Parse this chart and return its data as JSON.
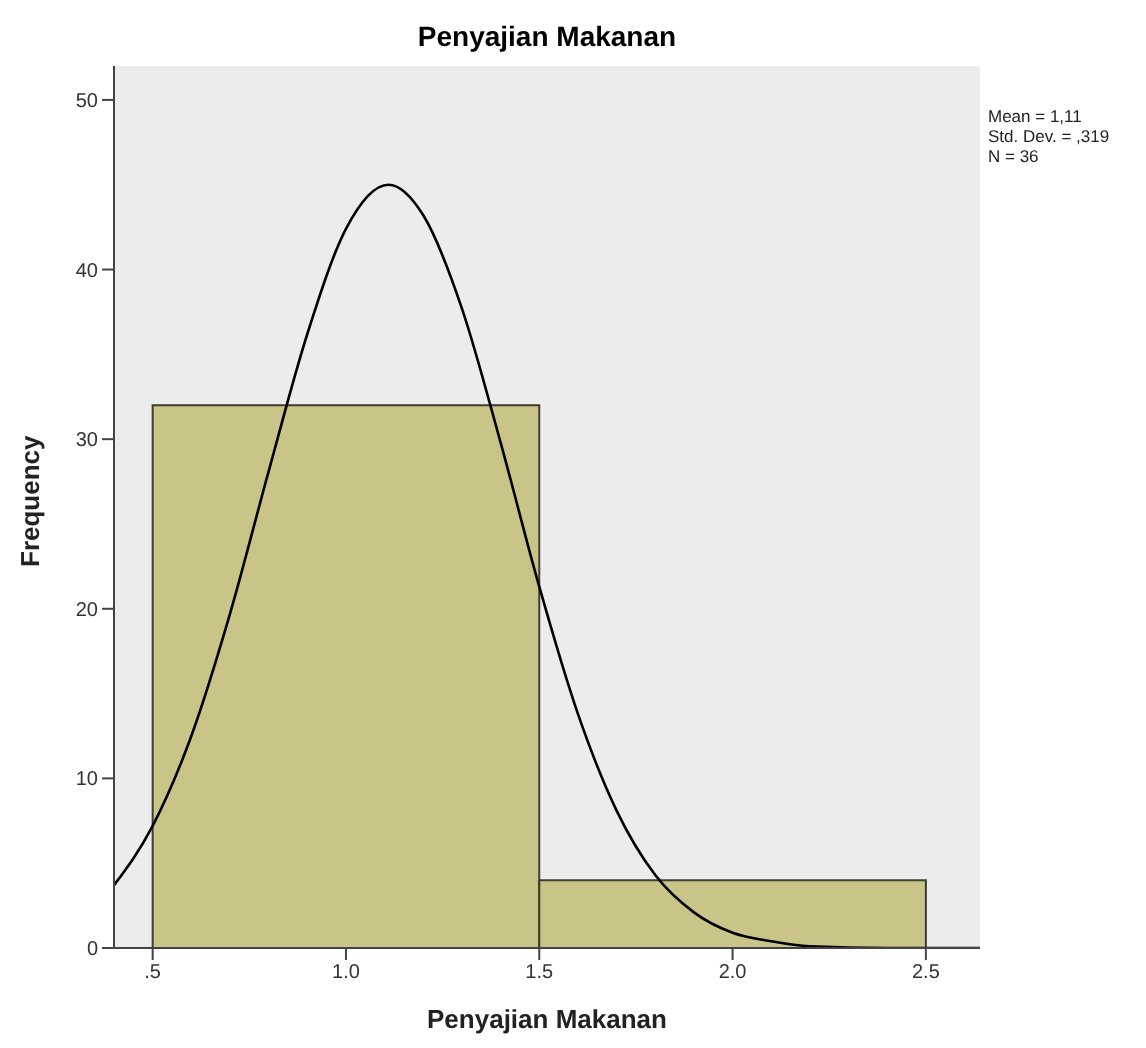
{
  "chart_data": {
    "type": "histogram",
    "title": "Penyajian Makanan",
    "xlabel": "Penyajian Makanan",
    "ylabel": "Frequency",
    "bins": [
      0.5,
      1.5,
      2.5
    ],
    "values": [
      32,
      4
    ],
    "color": "#c9c487",
    "series": [
      {
        "type": "line",
        "color": "#000000",
        "x": [
          0.4,
          0.5,
          0.6,
          0.7,
          0.8,
          0.9,
          1.0,
          1.11,
          1.2,
          1.3,
          1.4,
          1.5,
          1.6,
          1.7,
          1.8,
          1.9,
          2.0,
          2.1,
          2.2,
          2.4,
          2.64
        ],
        "values": [
          3.7,
          7.2,
          12.5,
          19.7,
          28.1,
          36.2,
          42.4,
          45.0,
          43.2,
          37.7,
          29.8,
          21.3,
          13.8,
          8.1,
          4.3,
          2.1,
          0.9,
          0.4,
          0.1,
          0,
          0
        ]
      }
    ],
    "xlim": [
      0.4,
      2.64
    ],
    "xticks": [
      {
        "value": 0.5,
        "label": ".5"
      },
      {
        "value": 1.0,
        "label": "1.0"
      },
      {
        "value": 1.5,
        "label": "1.5"
      },
      {
        "value": 2.0,
        "label": "2.0"
      },
      {
        "value": 2.5,
        "label": "2.5"
      }
    ],
    "ylim": [
      0,
      52
    ],
    "yticks": [
      0,
      10,
      20,
      30,
      40,
      50
    ],
    "grid": false,
    "marker": "none",
    "line_style": "solid",
    "annotations": [
      "Mean = 1,11",
      "Std. Dev. = ,319",
      "N = 36"
    ]
  }
}
